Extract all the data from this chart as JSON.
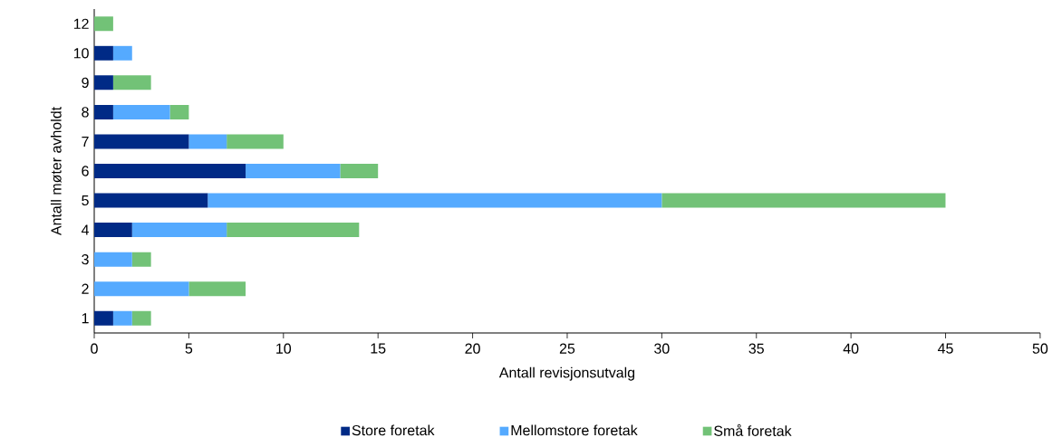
{
  "chart_data": {
    "type": "bar",
    "orientation": "horizontal",
    "stacked": true,
    "categories": [
      "12",
      "10",
      "9",
      "8",
      "7",
      "6",
      "5",
      "4",
      "3",
      "2",
      "1"
    ],
    "series": [
      {
        "name": "Store foretak",
        "color": "#002a86",
        "values": [
          0,
          1,
          1,
          1,
          5,
          8,
          6,
          2,
          0,
          0,
          1
        ]
      },
      {
        "name": "Mellomstore foretak",
        "color": "#55aaff",
        "values": [
          0,
          1,
          0,
          3,
          2,
          5,
          24,
          5,
          2,
          5,
          1
        ]
      },
      {
        "name": "Små foretak",
        "color": "#72c277",
        "values": [
          1,
          0,
          2,
          1,
          3,
          2,
          15,
          7,
          1,
          3,
          1
        ]
      }
    ],
    "xlabel": "Antall revisjonsutvalg",
    "ylabel": "Antall møter avholdt",
    "xlim": [
      0,
      50
    ],
    "xticks": [
      0,
      5,
      10,
      15,
      20,
      25,
      30,
      35,
      40,
      45,
      50
    ],
    "legend": "bottom"
  }
}
